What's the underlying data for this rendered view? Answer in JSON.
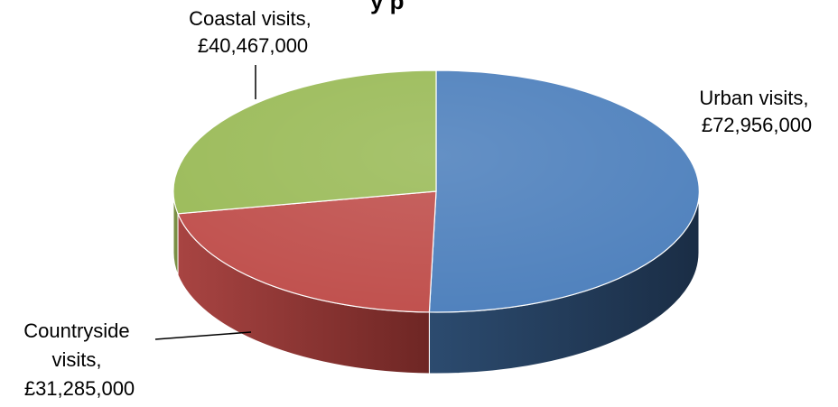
{
  "chart_data": {
    "type": "pie",
    "title": "",
    "title_fragment": "y  p",
    "style": "3d",
    "slices": [
      {
        "name": "Urban visits",
        "value": 72956000,
        "value_label": "£72,956,000",
        "color": "#4F81BD"
      },
      {
        "name": "Countryside visits",
        "value": 31285000,
        "value_label": "£31,285,000",
        "color": "#C0504D"
      },
      {
        "name": "Coastal visits",
        "value": 40467000,
        "value_label": "£40,467,000",
        "color": "#9BBB59"
      }
    ],
    "labels": {
      "urban": {
        "line1": "Urban visits,",
        "line2": "£72,956,000"
      },
      "countryside": {
        "line1": "Countryside",
        "line2": "visits,",
        "line3": "£31,285,000"
      },
      "coastal": {
        "line1": "Coastal visits,",
        "line2": "£40,467,000"
      }
    },
    "legend": "none"
  }
}
